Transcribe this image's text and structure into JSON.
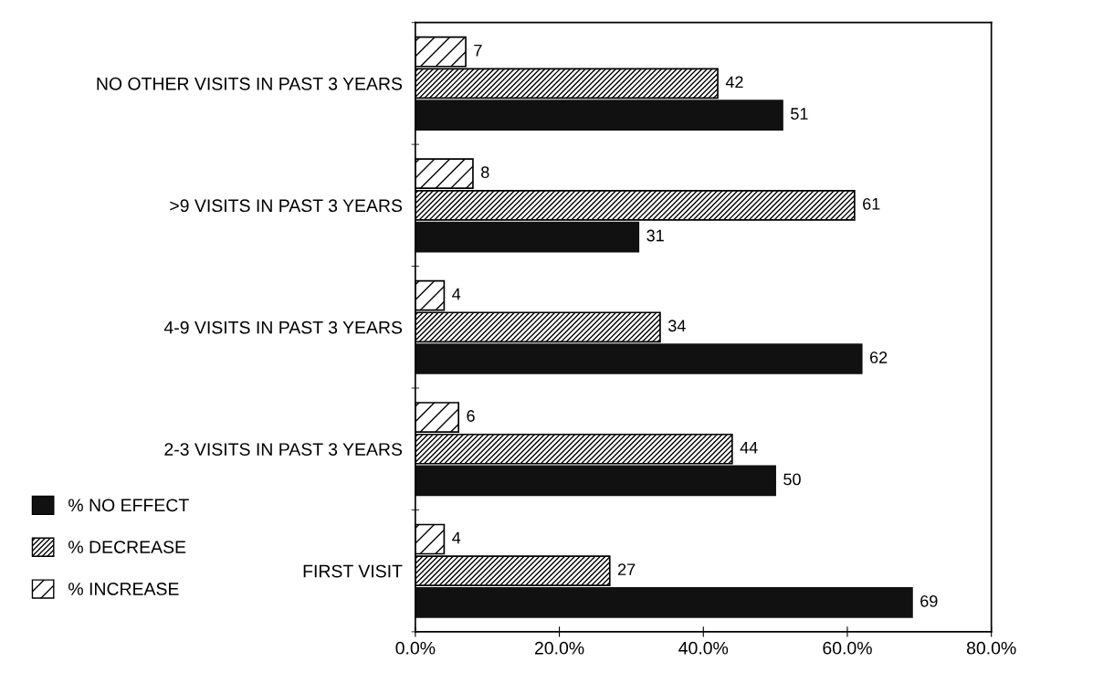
{
  "chart_data": {
    "type": "bar",
    "orientation": "horizontal",
    "categories": [
      "NO OTHER VISITS IN PAST 3 YEARS",
      ">9 VISITS IN PAST 3 YEARS",
      "4-9 VISITS IN PAST 3 YEARS",
      "2-3 VISITS IN PAST 3 YEARS",
      "FIRST VISIT"
    ],
    "series": [
      {
        "name": "% NO EFFECT",
        "color": "#111111",
        "values": [
          51,
          31,
          62,
          50,
          69
        ]
      },
      {
        "name": "% DECREASE",
        "color": "#000000",
        "values": [
          42,
          61,
          34,
          44,
          27
        ]
      },
      {
        "name": "% INCREASE",
        "color": "#000000",
        "values": [
          7,
          8,
          4,
          6,
          4
        ]
      }
    ],
    "xlim": [
      0,
      80
    ],
    "xticks": [
      {
        "value": 0,
        "label": "0.0%"
      },
      {
        "value": 20,
        "label": "20.0%"
      },
      {
        "value": 40,
        "label": "40.0%"
      },
      {
        "value": 60,
        "label": "60.0%"
      },
      {
        "value": 80,
        "label": "80.0%"
      }
    ],
    "data_labels": true,
    "grid": false,
    "legend": "bottom left"
  }
}
